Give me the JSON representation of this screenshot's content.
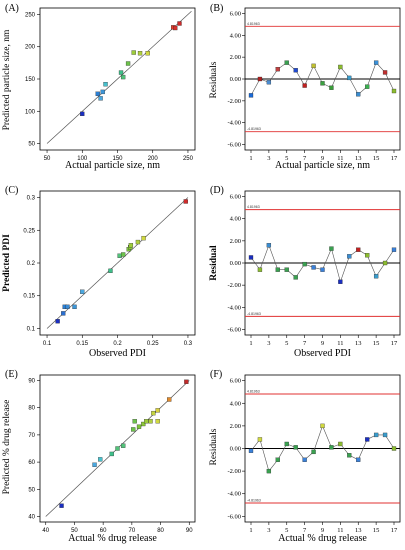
{
  "panels": [
    {
      "id": "A",
      "label": "(A)",
      "kind": "scatter",
      "xlabel": "Actual particle size, nm",
      "ylabel": "Predicted particle size, nm",
      "xticks": [
        50,
        100,
        150,
        200,
        250
      ],
      "yticks": [
        50,
        100,
        150,
        200,
        250
      ],
      "xlim": [
        40,
        260
      ],
      "ylim": [
        40,
        260
      ]
    },
    {
      "id": "B",
      "label": "(B)",
      "kind": "residual",
      "xlabel": "Actual particle size, nm",
      "ylabel": "Residuals",
      "yticks": [
        "6.00",
        "4.00",
        "2.00",
        "0.00",
        "-2.00",
        "-4.00",
        "-6.00"
      ],
      "limit_upper_label": "4.81963",
      "limit_lower_label": "-4.81963"
    },
    {
      "id": "C",
      "label": "(C)",
      "kind": "scatter",
      "xlabel": "Observed PDI",
      "ylabel": "Predicted PDI",
      "xticks": [
        "0.1",
        "0.15",
        "0.2",
        "0.25",
        "0.3"
      ],
      "yticks": [
        "0.1",
        "0.15",
        "0.2",
        "0.25",
        "0.3"
      ],
      "xlim": [
        0.09,
        0.31
      ],
      "ylim": [
        0.09,
        0.31
      ]
    },
    {
      "id": "D",
      "label": "(D)",
      "kind": "residual",
      "xlabel": "Observed PDI",
      "ylabel": "Residual",
      "yticks": [
        "6.00",
        "4.00",
        "2.00",
        "0.00",
        "-2.00",
        "-4.00",
        "-6.00"
      ],
      "limit_upper_label": "4.81963",
      "limit_lower_label": "-4.81963"
    },
    {
      "id": "E",
      "label": "(E)",
      "kind": "scatter",
      "xlabel": "Actual % drug release",
      "ylabel": "Predicted % drug release",
      "xticks": [
        40,
        50,
        60,
        70,
        80,
        90
      ],
      "yticks": [
        40,
        50,
        60,
        70,
        80,
        90
      ],
      "xlim": [
        38,
        92
      ],
      "ylim": [
        38,
        92
      ]
    },
    {
      "id": "F",
      "label": "(F)",
      "kind": "residual",
      "xlabel": "Actual % drug release",
      "ylabel": "Residuals",
      "yticks": [
        "6.00",
        "4.00",
        "2.00",
        "0.00",
        "-2.00",
        "-4.00",
        "-6.00"
      ],
      "limit_upper_label": "4.81963",
      "limit_lower_label": "-4.81963"
    }
  ],
  "chart_data": [
    {
      "type": "scatter",
      "panel": "A",
      "xlabel": "Actual particle size, nm",
      "ylabel": "Predicted particle size, nm",
      "xlim": [
        40,
        260
      ],
      "ylim": [
        40,
        260
      ],
      "points": [
        {
          "x": 100,
          "y": 96,
          "color": "#1a2ec0"
        },
        {
          "x": 122,
          "y": 127,
          "color": "#2a7fd4"
        },
        {
          "x": 126,
          "y": 120,
          "color": "#4aa8e0"
        },
        {
          "x": 129,
          "y": 130,
          "color": "#3c96d8"
        },
        {
          "x": 133,
          "y": 142,
          "color": "#47c0cc"
        },
        {
          "x": 155,
          "y": 160,
          "color": "#3fbf8a"
        },
        {
          "x": 158,
          "y": 153,
          "color": "#52c27a"
        },
        {
          "x": 165,
          "y": 174,
          "color": "#6cc24a"
        },
        {
          "x": 173,
          "y": 191,
          "color": "#9ccc3a"
        },
        {
          "x": 182,
          "y": 190,
          "color": "#b0d040"
        },
        {
          "x": 193,
          "y": 190,
          "color": "#d0d840"
        },
        {
          "x": 229,
          "y": 230,
          "color": "#e0402c"
        },
        {
          "x": 232,
          "y": 229,
          "color": "#d8302c"
        },
        {
          "x": 238,
          "y": 236,
          "color": "#d02a2a"
        }
      ],
      "fit_line": [
        [
          50,
          50
        ],
        [
          255,
          255
        ]
      ]
    },
    {
      "type": "line",
      "panel": "B",
      "xlabel": "Actual particle size, nm",
      "ylabel": "Residuals",
      "x": [
        1,
        2,
        3,
        4,
        5,
        6,
        7,
        8,
        9,
        10,
        11,
        12,
        13,
        14,
        15,
        16,
        17
      ],
      "y": [
        -1.5,
        0.0,
        -0.3,
        0.9,
        1.5,
        0.8,
        -0.6,
        1.2,
        -0.4,
        -0.8,
        1.1,
        0.1,
        -1.4,
        -0.7,
        1.5,
        0.6,
        -1.1
      ],
      "colors": [
        "#1a6ad8",
        "#b02020",
        "#4a8bd0",
        "#c04040",
        "#3aa050",
        "#204ad0",
        "#c02020",
        "#c0c030",
        "#3aa040",
        "#3a9c3a",
        "#8cbc30",
        "#3a9ccc",
        "#3a8cd0",
        "#3ab050",
        "#3a90d8",
        "#c03030",
        "#8cbc30"
      ],
      "ylim": [
        -6.5,
        6.5
      ],
      "limits": [
        4.81963,
        -4.81963
      ],
      "xticks": [
        1,
        3,
        5,
        7,
        9,
        11,
        13,
        15,
        17
      ]
    },
    {
      "type": "scatter",
      "panel": "C",
      "xlabel": "Observed PDI",
      "ylabel": "Predicted PDI",
      "xlim": [
        0.09,
        0.31
      ],
      "ylim": [
        0.09,
        0.31
      ],
      "points": [
        {
          "x": 0.115,
          "y": 0.111,
          "color": "#1a2ec0"
        },
        {
          "x": 0.123,
          "y": 0.123,
          "color": "#2a6fd0"
        },
        {
          "x": 0.125,
          "y": 0.133,
          "color": "#2a7fd4"
        },
        {
          "x": 0.129,
          "y": 0.133,
          "color": "#3a8cd8"
        },
        {
          "x": 0.139,
          "y": 0.133,
          "color": "#3c96d8"
        },
        {
          "x": 0.15,
          "y": 0.156,
          "color": "#4aa8e0"
        },
        {
          "x": 0.19,
          "y": 0.188,
          "color": "#3fbf8a"
        },
        {
          "x": 0.203,
          "y": 0.211,
          "color": "#52c27a"
        },
        {
          "x": 0.208,
          "y": 0.213,
          "color": "#6cc24a"
        },
        {
          "x": 0.216,
          "y": 0.221,
          "color": "#7cc43a"
        },
        {
          "x": 0.218,
          "y": 0.224,
          "color": "#8cc83a"
        },
        {
          "x": 0.219,
          "y": 0.227,
          "color": "#9ccc3a"
        },
        {
          "x": 0.229,
          "y": 0.232,
          "color": "#b0d040"
        },
        {
          "x": 0.237,
          "y": 0.238,
          "color": "#d0d840"
        },
        {
          "x": 0.297,
          "y": 0.294,
          "color": "#d02a2a"
        }
      ],
      "fit_line": [
        [
          0.1,
          0.1
        ],
        [
          0.3,
          0.3
        ]
      ]
    },
    {
      "type": "line",
      "panel": "D",
      "xlabel": "Observed PDI",
      "ylabel": "Residual",
      "x": [
        1,
        2,
        3,
        4,
        5,
        6,
        7,
        8,
        9,
        10,
        11,
        12,
        13,
        14,
        15,
        16,
        17
      ],
      "y": [
        0.5,
        -0.6,
        1.6,
        -0.6,
        -0.6,
        -1.3,
        -0.1,
        -0.4,
        -0.6,
        1.3,
        -1.7,
        0.6,
        1.2,
        0.7,
        -1.2,
        0.0,
        1.2
      ],
      "colors": [
        "#1a2ec0",
        "#8cbc30",
        "#3a8cd0",
        "#3aa050",
        "#3aa050",
        "#3aa050",
        "#3aa050",
        "#3a80d8",
        "#3a80d8",
        "#3aa050",
        "#1a2ec0",
        "#3a8cd0",
        "#c02020",
        "#8cbc30",
        "#3a9ccc",
        "#8cbc30",
        "#3a80d8"
      ],
      "ylim": [
        -6.5,
        6.5
      ],
      "limits": [
        4.81963,
        -4.81963
      ],
      "xticks": [
        1,
        3,
        5,
        7,
        9,
        11,
        13,
        15,
        17
      ]
    },
    {
      "type": "scatter",
      "panel": "E",
      "xlabel": "Actual % drug release",
      "ylabel": "Predicted % drug release",
      "xlim": [
        38,
        92
      ],
      "ylim": [
        38,
        92
      ],
      "points": [
        {
          "x": 45.5,
          "y": 44,
          "color": "#1a2ec0"
        },
        {
          "x": 57,
          "y": 59,
          "color": "#4aa8e0"
        },
        {
          "x": 59,
          "y": 61,
          "color": "#47c0cc"
        },
        {
          "x": 63,
          "y": 63,
          "color": "#3fbf8a"
        },
        {
          "x": 65,
          "y": 65,
          "color": "#52c27a"
        },
        {
          "x": 67,
          "y": 66,
          "color": "#52c27a"
        },
        {
          "x": 70.5,
          "y": 72,
          "color": "#6cc24a"
        },
        {
          "x": 71,
          "y": 75,
          "color": "#6cc24a"
        },
        {
          "x": 72.5,
          "y": 73,
          "color": "#7cc43a"
        },
        {
          "x": 74,
          "y": 74,
          "color": "#8cc83a"
        },
        {
          "x": 75,
          "y": 75,
          "color": "#9ccc3a"
        },
        {
          "x": 76.5,
          "y": 75,
          "color": "#b0d040"
        },
        {
          "x": 77.5,
          "y": 78,
          "color": "#c4d440"
        },
        {
          "x": 79,
          "y": 75,
          "color": "#d0d840"
        },
        {
          "x": 79,
          "y": 79,
          "color": "#d8d040"
        },
        {
          "x": 83,
          "y": 83,
          "color": "#e08a2c"
        },
        {
          "x": 89,
          "y": 89.5,
          "color": "#c02a2a"
        }
      ],
      "fit_line": [
        [
          40,
          40
        ],
        [
          90,
          90
        ]
      ]
    },
    {
      "type": "line",
      "panel": "F",
      "xlabel": "Actual % drug release",
      "ylabel": "Residuals",
      "x": [
        1,
        2,
        3,
        4,
        5,
        6,
        7,
        8,
        9,
        10,
        11,
        12,
        13,
        14,
        15,
        16,
        17
      ],
      "y": [
        -0.2,
        0.8,
        -2.0,
        -1.0,
        0.4,
        0.1,
        -1.0,
        -0.3,
        2.0,
        0.1,
        0.4,
        -0.6,
        -1.0,
        0.8,
        1.2,
        1.2,
        0.0
      ],
      "colors": [
        "#3a80d8",
        "#d0d840",
        "#3aa050",
        "#3aa050",
        "#3aa050",
        "#3aa050",
        "#3a80d8",
        "#3aa050",
        "#d0d840",
        "#3aa050",
        "#8cbc30",
        "#3aa050",
        "#3a80d8",
        "#1a2ec0",
        "#3a9ccc",
        "#3a9ccc",
        "#8cbc30"
      ],
      "ylim": [
        -6.5,
        6.5
      ],
      "limits": [
        4.81963,
        -4.81963
      ],
      "xticks": [
        1,
        3,
        5,
        7,
        9,
        11,
        13,
        15,
        17
      ]
    }
  ]
}
